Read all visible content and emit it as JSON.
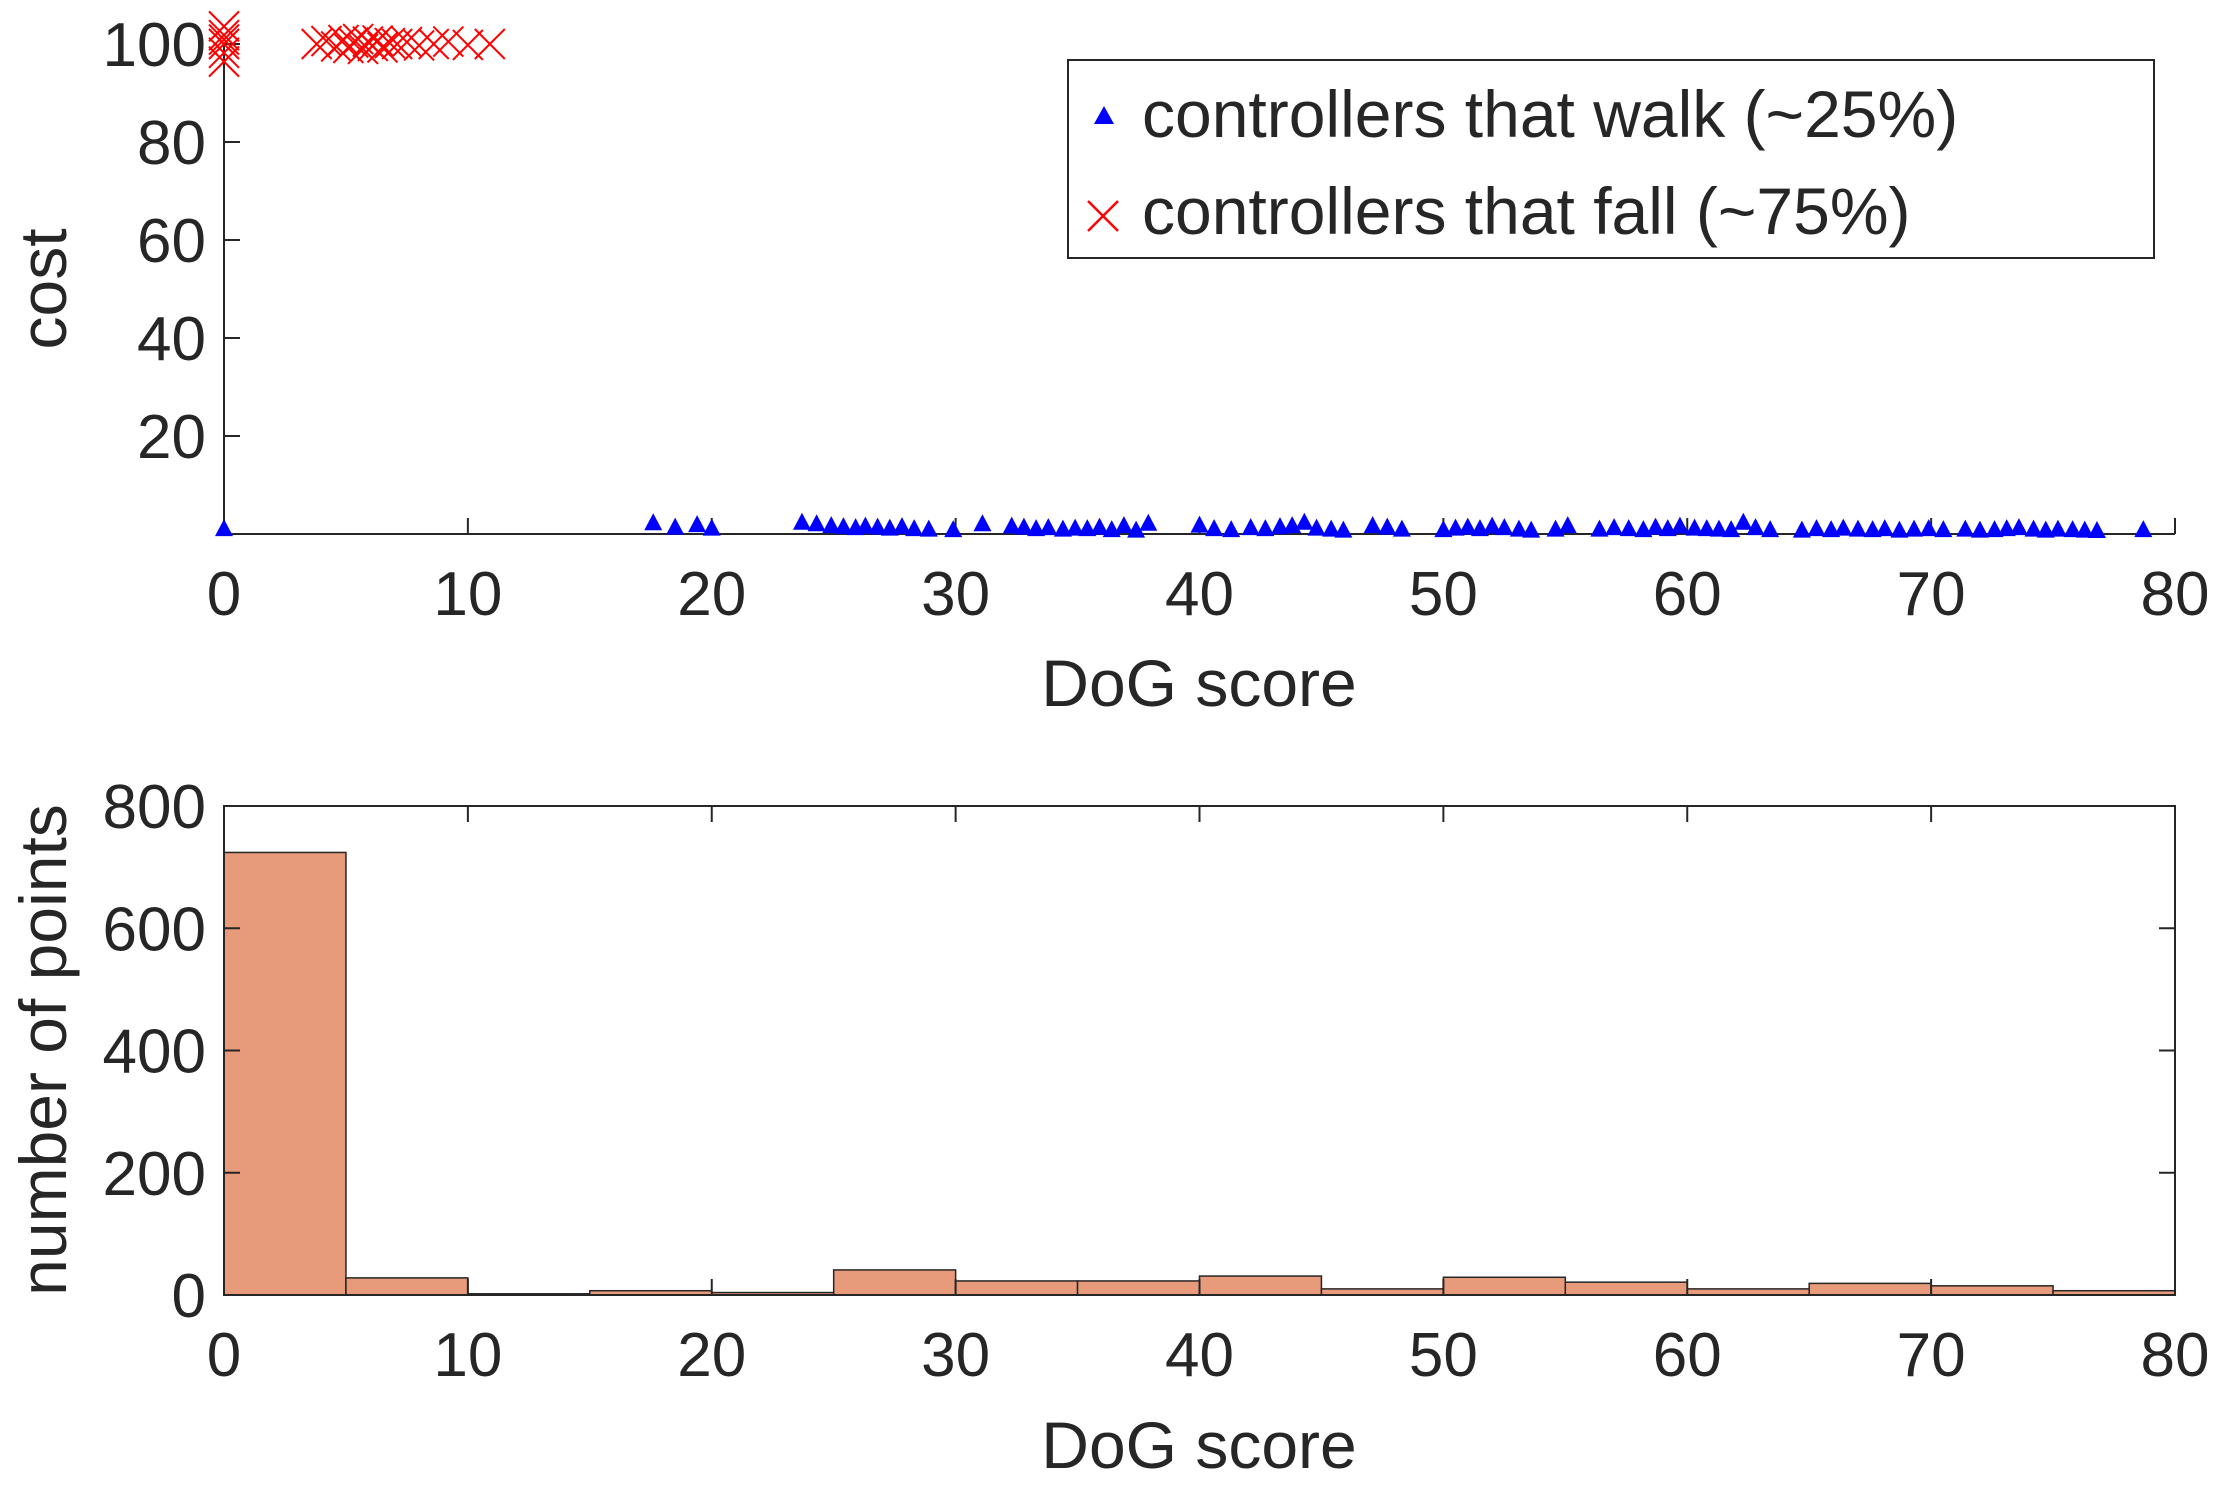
{
  "chart_data": [
    {
      "type": "scatter",
      "xlabel": "DoG score",
      "ylabel": "cost",
      "xlim": [
        0,
        80
      ],
      "ylim": [
        0,
        100
      ],
      "xticks": [
        "0",
        "10",
        "20",
        "30",
        "40",
        "50",
        "60",
        "70",
        "80"
      ],
      "yticks": [
        "20",
        "40",
        "60",
        "80",
        "100"
      ],
      "grid": false,
      "legend": "top-right",
      "series": [
        {
          "name": "controllers that walk (~25%)",
          "marker": "triangle",
          "color": "#0000ff",
          "x": [
            0,
            17.6,
            18.5,
            19.4,
            20.0,
            23.7,
            24.3,
            24.9,
            25.4,
            25.9,
            26.3,
            26.8,
            27.3,
            27.8,
            28.3,
            28.9,
            29.9,
            31.1,
            32.3,
            32.8,
            33.3,
            33.8,
            34.4,
            34.9,
            35.4,
            35.9,
            36.4,
            36.9,
            37.4,
            37.9,
            40.0,
            40.6,
            41.3,
            42.1,
            42.7,
            43.3,
            43.8,
            44.3,
            44.8,
            45.4,
            45.9,
            47.1,
            47.7,
            48.3,
            50.0,
            50.5,
            51.0,
            51.5,
            52.0,
            52.5,
            53.1,
            53.6,
            54.6,
            55.1,
            56.4,
            57.0,
            57.6,
            58.2,
            58.7,
            59.2,
            59.7,
            60.3,
            60.8,
            61.3,
            61.8,
            62.3,
            62.8,
            63.4,
            64.7,
            65.3,
            65.9,
            66.4,
            67.0,
            67.6,
            68.1,
            68.7,
            69.3,
            69.9,
            70.5,
            71.4,
            72.0,
            72.6,
            73.1,
            73.6,
            74.2,
            74.7,
            75.2,
            75.8,
            76.3,
            76.8,
            78.7
          ],
          "y": [
            1.0,
            2.2,
            1.3,
            1.8,
            1.1,
            2.3,
            2.0,
            1.6,
            1.4,
            1.2,
            1.5,
            1.3,
            1.1,
            1.4,
            1.0,
            0.9,
            0.8,
            2.0,
            1.5,
            1.3,
            1.0,
            1.2,
            0.9,
            1.1,
            1.0,
            1.3,
            0.8,
            1.6,
            0.7,
            2.1,
            1.7,
            1.0,
            0.8,
            1.2,
            1.0,
            1.4,
            1.6,
            2.3,
            1.1,
            0.9,
            0.7,
            1.6,
            1.3,
            0.9,
            0.8,
            1.1,
            1.3,
            1.0,
            1.5,
            1.2,
            0.9,
            0.7,
            0.9,
            1.6,
            0.9,
            1.2,
            1.0,
            0.8,
            1.3,
            1.0,
            1.5,
            1.1,
            1.0,
            0.9,
            0.8,
            2.3,
            1.2,
            0.8,
            0.7,
            1.0,
            0.8,
            1.1,
            0.9,
            0.8,
            1.0,
            0.7,
            0.9,
            1.0,
            0.8,
            0.9,
            0.7,
            0.8,
            1.0,
            1.2,
            0.9,
            0.7,
            0.9,
            0.8,
            0.7,
            0.6,
            0.8
          ]
        },
        {
          "name": "controllers that fall (~75%)",
          "marker": "x",
          "color": "#ff0000",
          "x": [
            0,
            0,
            0,
            0,
            0,
            0,
            3.8,
            4.2,
            4.6,
            4.9,
            5.1,
            5.3,
            5.5,
            5.7,
            5.9,
            6.1,
            6.3,
            6.5,
            6.8,
            7.1,
            7.5,
            8.0,
            8.6,
            9.2,
            10.0,
            10.9
          ],
          "y": [
            100,
            100,
            100,
            100,
            100,
            100,
            100,
            100,
            100,
            100,
            100,
            100,
            100,
            100,
            100,
            100,
            100,
            100,
            100,
            100,
            100,
            100,
            100,
            100,
            100,
            100
          ],
          "y_jitter": [
            0.0,
            -1.8,
            1.8,
            -3.6,
            3.6,
            0.9,
            0.0,
            0.6,
            -0.5,
            0.8,
            -0.8,
            0.3,
            1.0,
            -1.0,
            0.5,
            -0.4,
            0.7,
            -0.7,
            0.2,
            0.0,
            0.4,
            -0.3,
            0.0,
            0.5,
            -0.2,
            0.0
          ]
        }
      ]
    },
    {
      "type": "bar",
      "xlabel": "DoG score",
      "ylabel": "number of points",
      "xlim": [
        0,
        80
      ],
      "ylim": [
        0,
        800
      ],
      "xticks": [
        "0",
        "10",
        "20",
        "30",
        "40",
        "50",
        "60",
        "70",
        "80"
      ],
      "yticks": [
        "0",
        "200",
        "400",
        "600",
        "800"
      ],
      "grid": false,
      "bin_width": 5,
      "bin_edges": [
        0,
        5,
        10,
        15,
        20,
        25,
        30,
        35,
        40,
        45,
        50,
        55,
        60,
        65,
        70,
        75,
        80
      ],
      "values": [
        724,
        28,
        2,
        7,
        4,
        41,
        23,
        23,
        31,
        10,
        29,
        21,
        10,
        19,
        15,
        7
      ],
      "color": "#e89b7a"
    }
  ]
}
